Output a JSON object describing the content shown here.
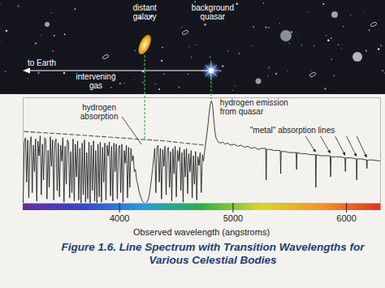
{
  "chart_data": {
    "type": "line",
    "title": "Figure 1.6. Line Spectrum with Transition Wavelengths for Various Celestial Bodies",
    "x_label": "Observed wavelength (angstroms)",
    "xlim": [
      3150,
      6300
    ],
    "xticks": [
      4000,
      5000,
      6000
    ],
    "ylim": [
      0,
      1
    ],
    "yticks": [],
    "tick_labels": "x",
    "series": [
      {
        "color": "#111111",
        "line_style": "solid",
        "x": [
          3150,
          3160,
          3170,
          3180,
          3190,
          3200,
          3210,
          3220,
          3230,
          3240,
          3250,
          3260,
          3270,
          3280,
          3290,
          3300,
          3310,
          3320,
          3330,
          3340,
          3350,
          3360,
          3370,
          3380,
          3390,
          3400,
          3410,
          3420,
          3430,
          3440,
          3450,
          3460,
          3470,
          3480,
          3490,
          3500,
          3510,
          3520,
          3530,
          3540,
          3550,
          3560,
          3570,
          3580,
          3590,
          3600,
          3610,
          3620,
          3630,
          3640,
          3650,
          3660,
          3670,
          3680,
          3690,
          3700,
          3710,
          3720,
          3730,
          3740,
          3750,
          3760,
          3770,
          3780,
          3790,
          3800,
          3810,
          3820,
          3830,
          3840,
          3850,
          3860,
          3870,
          3880,
          3890,
          3900,
          3910,
          3920,
          3930,
          3940,
          3950,
          3960,
          3970,
          3980,
          3990,
          4000,
          4010,
          4020,
          4030,
          4040,
          4050,
          4060,
          4070,
          4080,
          4090,
          4100,
          4110,
          4120,
          4130,
          4140,
          4150,
          4160,
          4170,
          4180,
          4190,
          4200,
          4210,
          4220,
          4230,
          4240,
          4250,
          4260,
          4270,
          4280,
          4290,
          4300,
          4310,
          4320,
          4330,
          4340,
          4350,
          4360,
          4370,
          4380,
          4390,
          4400,
          4410,
          4420,
          4430,
          4440,
          4450,
          4460,
          4470,
          4480,
          4490,
          4500,
          4510,
          4520,
          4530,
          4540,
          4550,
          4560,
          4570,
          4580,
          4590,
          4600,
          4610,
          4620,
          4630,
          4640,
          4650,
          4660,
          4670,
          4680,
          4690,
          4700,
          4710,
          4720,
          4730,
          4740,
          4750,
          4760,
          4770,
          4780,
          4790,
          4800,
          4810,
          4820,
          4830,
          4840,
          4850,
          4860,
          4870,
          4890,
          4910,
          4930,
          4950,
          4980,
          5010,
          5040,
          5070,
          5100,
          5130,
          5160,
          5190,
          5220,
          5250,
          5280,
          5288,
          5292,
          5296,
          5330,
          5360,
          5400,
          5416,
          5420,
          5424,
          5460,
          5500,
          5540,
          5556,
          5560,
          5564,
          5600,
          5640,
          5680,
          5726,
          5730,
          5734,
          5780,
          5820,
          5856,
          5860,
          5864,
          5900,
          5940,
          5986,
          5990,
          5994,
          6040,
          6086,
          6090,
          6094,
          6130,
          6176,
          6180,
          6184,
          6230,
          6300
        ],
        "values": [
          0.0,
          0.58,
          0.62,
          0.2,
          0.6,
          0.05,
          0.57,
          0.63,
          0.1,
          0.55,
          0.3,
          0.61,
          0.02,
          0.59,
          0.45,
          0.64,
          0.08,
          0.56,
          0.22,
          0.62,
          0.6,
          0.04,
          0.5,
          0.15,
          0.63,
          0.35,
          0.6,
          0.03,
          0.58,
          0.61,
          0.12,
          0.57,
          0.06,
          0.55,
          0.4,
          0.62,
          0.01,
          0.54,
          0.18,
          0.6,
          0.58,
          0.05,
          0.49,
          0.1,
          0.61,
          0.02,
          0.56,
          0.25,
          0.59,
          0.03,
          0.52,
          0.0,
          0.57,
          0.08,
          0.6,
          0.01,
          0.48,
          0.04,
          0.58,
          0.0,
          0.55,
          0.12,
          0.59,
          0.02,
          0.5,
          0.0,
          0.56,
          0.06,
          0.58,
          0.01,
          0.53,
          0.2,
          0.57,
          0.03,
          0.55,
          0.45,
          0.58,
          0.07,
          0.54,
          0.02,
          0.57,
          0.3,
          0.56,
          0.04,
          0.52,
          0.55,
          0.1,
          0.56,
          0.01,
          0.5,
          0.38,
          0.55,
          0.05,
          0.53,
          0.15,
          0.52,
          0.4,
          0.45,
          0.3,
          0.32,
          0.22,
          0.18,
          0.12,
          0.08,
          0.05,
          0.02,
          0.01,
          0.0,
          0.0,
          0.01,
          0.03,
          0.07,
          0.14,
          0.22,
          0.32,
          0.42,
          0.52,
          0.1,
          0.53,
          0.55,
          0.2,
          0.52,
          0.04,
          0.51,
          0.35,
          0.54,
          0.08,
          0.5,
          0.53,
          0.15,
          0.49,
          0.02,
          0.52,
          0.28,
          0.54,
          0.06,
          0.5,
          0.4,
          0.53,
          0.12,
          0.48,
          0.01,
          0.51,
          0.25,
          0.52,
          0.09,
          0.47,
          0.3,
          0.5,
          0.05,
          0.45,
          0.18,
          0.49,
          0.03,
          0.44,
          0.36,
          0.48,
          0.1,
          0.46,
          0.4,
          0.5,
          0.58,
          0.66,
          0.75,
          0.86,
          0.94,
          0.97,
          0.93,
          0.8,
          0.68,
          0.62,
          0.6,
          0.58,
          0.57,
          0.58,
          0.56,
          0.57,
          0.55,
          0.56,
          0.54,
          0.55,
          0.53,
          0.54,
          0.52,
          0.53,
          0.51,
          0.52,
          0.52,
          0.52,
          0.22,
          0.51,
          0.51,
          0.5,
          0.5,
          0.5,
          0.28,
          0.49,
          0.49,
          0.48,
          0.48,
          0.48,
          0.32,
          0.48,
          0.47,
          0.47,
          0.46,
          0.46,
          0.15,
          0.46,
          0.45,
          0.45,
          0.45,
          0.25,
          0.44,
          0.44,
          0.44,
          0.43,
          0.3,
          0.43,
          0.43,
          0.42,
          0.22,
          0.42,
          0.42,
          0.41,
          0.33,
          0.41,
          0.41,
          0.4
        ]
      },
      {
        "color": "#555555",
        "line_style": "dashed",
        "x": [
          3160,
          3600,
          4000,
          4400,
          4750
        ],
        "values": [
          0.68,
          0.65,
          0.62,
          0.59,
          0.55
        ]
      }
    ],
    "annotations": {
      "hydrogen_absorption": {
        "lines": [
          "hydrogen",
          "absorption"
        ],
        "x": 4225
      },
      "hydrogen_emission": {
        "lines": [
          "hydrogen emission",
          "from quasar"
        ],
        "x": 4810
      },
      "metal_lines": {
        "text": "\"metal\" absorption lines",
        "x": [
          5730,
          5860,
          5990,
          6090,
          6180
        ]
      }
    },
    "illustration": {
      "galaxy": [
        "distant",
        "galaxy"
      ],
      "quasar": [
        "background",
        "quasar"
      ],
      "to_earth": "to Earth",
      "gas": [
        "intervening",
        "gas"
      ]
    }
  }
}
